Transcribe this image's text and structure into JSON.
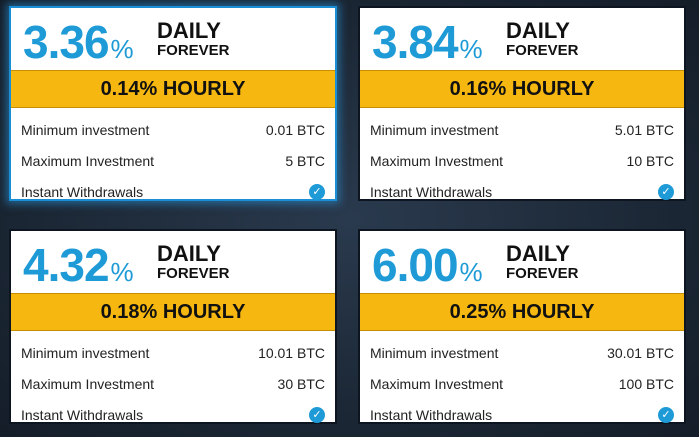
{
  "plans": [
    {
      "rate": "3.36",
      "pct": "%",
      "period_1": "DAILY",
      "period_2": "FOREVER",
      "hourly": "0.14% HOURLY",
      "min_label": "Minimum investment",
      "min_value": "0.01 BTC",
      "max_label": "Maximum Investment",
      "max_value": "5 BTC",
      "withdraw_label": "Instant Withdrawals"
    },
    {
      "rate": "3.84",
      "pct": "%",
      "period_1": "DAILY",
      "period_2": "FOREVER",
      "hourly": "0.16% HOURLY",
      "min_label": "Minimum investment",
      "min_value": "5.01 BTC",
      "max_label": "Maximum Investment",
      "max_value": "10 BTC",
      "withdraw_label": "Instant Withdrawals"
    },
    {
      "rate": "4.32",
      "pct": "%",
      "period_1": "DAILY",
      "period_2": "FOREVER",
      "hourly": "0.18% HOURLY",
      "min_label": "Minimum investment",
      "min_value": "10.01 BTC",
      "max_label": "Maximum Investment",
      "max_value": "30 BTC",
      "withdraw_label": "Instant Withdrawals"
    },
    {
      "rate": "6.00",
      "pct": "%",
      "period_1": "DAILY",
      "period_2": "FOREVER",
      "hourly": "0.25% HOURLY",
      "min_label": "Minimum investment",
      "min_value": "30.01 BTC",
      "max_label": "Maximum Investment",
      "max_value": "100 BTC",
      "withdraw_label": "Instant Withdrawals"
    }
  ],
  "colors": {
    "accent": "#1e9ad6",
    "hourly_bar": "#f6b810",
    "selected_glow": "#1a8fd6"
  },
  "icons": {
    "withdraw_check": "check-circle-icon"
  }
}
